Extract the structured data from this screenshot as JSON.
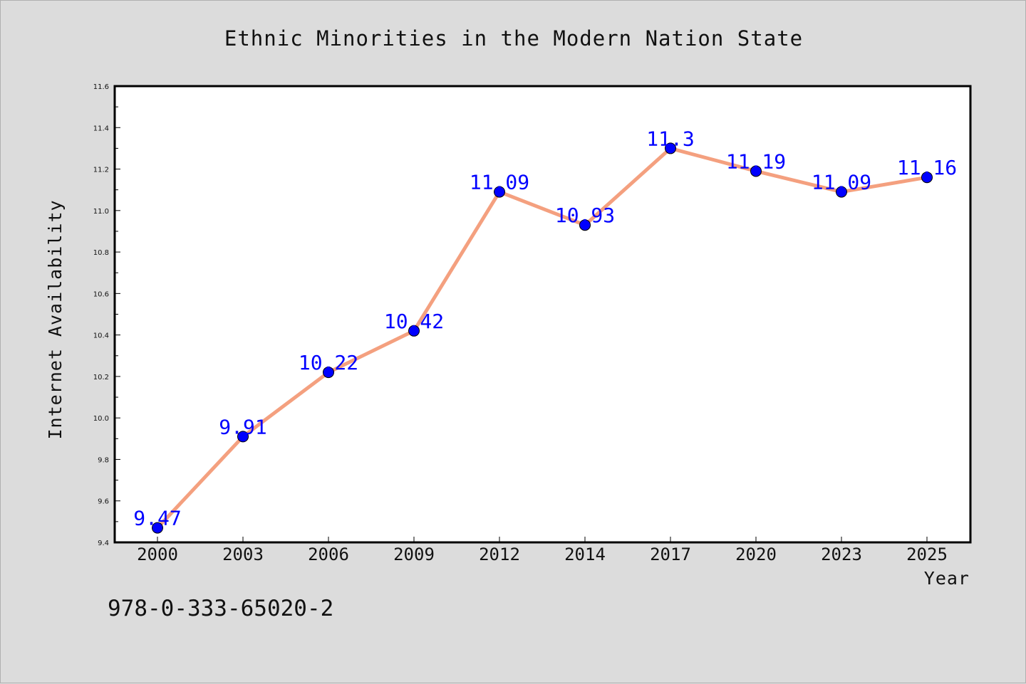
{
  "chart_data": {
    "type": "line",
    "title": "Ethnic Minorities in the Modern Nation State",
    "xlabel": "Year",
    "ylabel": "Internet Availability",
    "categories": [
      "2000",
      "2003",
      "2006",
      "2009",
      "2012",
      "2014",
      "2017",
      "2020",
      "2023",
      "2025"
    ],
    "series": [
      {
        "values": [
          9.47,
          9.91,
          10.22,
          10.42,
          11.09,
          10.93,
          11.3,
          11.19,
          11.09,
          11.16
        ]
      }
    ],
    "data_labels": [
      "9.47",
      "9.91",
      "10.22",
      "10.42",
      "11.09",
      "10.93",
      "11.3",
      "11.19",
      "11.09",
      "11.16"
    ],
    "y_ticks": [
      "9.4",
      "9.6",
      "9.8",
      "10.0",
      "10.2",
      "10.4",
      "10.6",
      "10.8",
      "11.0",
      "11.2",
      "11.4",
      "11.6"
    ],
    "ylim": [
      9.4,
      11.6
    ],
    "grid": false,
    "legend": "none",
    "colors": {
      "line": "#f4a07f",
      "marker": "#0000ff",
      "data_label": "#0000ff",
      "background": "#dcdcdc",
      "plot_background": "#ffffff"
    }
  },
  "footer": {
    "isbn": "978-0-333-65020-2"
  }
}
